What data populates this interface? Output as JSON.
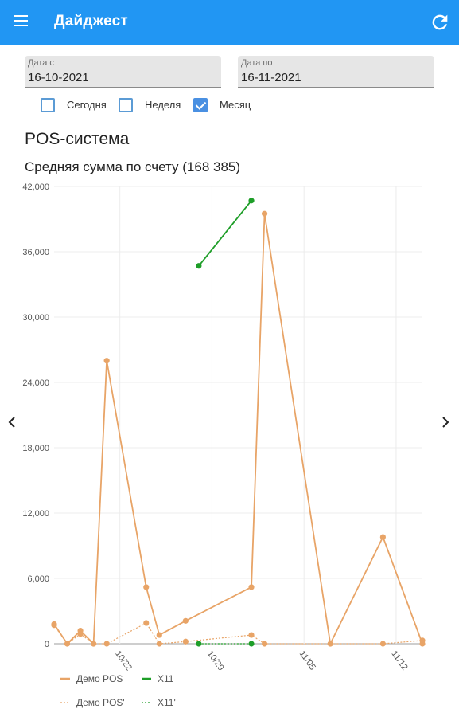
{
  "appbar": {
    "title": "Дайджест"
  },
  "filters": {
    "from": {
      "label": "Дата с",
      "value": "16-10-2021"
    },
    "to": {
      "label": "Дата по",
      "value": "16-11-2021"
    },
    "periods": [
      {
        "label": "Сегодня",
        "checked": false
      },
      {
        "label": "Неделя",
        "checked": false
      },
      {
        "label": "Месяц",
        "checked": true
      }
    ]
  },
  "section": {
    "title": "POS-система"
  },
  "colors": {
    "accent": "#2196f3",
    "orange": "#e8a467",
    "green": "#1e9e28"
  },
  "chart_data": {
    "type": "line",
    "title": "Средняя сумма по счету (168 385)",
    "xlabel": "",
    "ylabel": "",
    "ylim": [
      0,
      42000
    ],
    "y_ticks": [
      "0",
      "6,000",
      "12,000",
      "18,000",
      "24,000",
      "30,000",
      "36,000",
      "42,000"
    ],
    "x_ticks": [
      {
        "label": "10/22",
        "x": 22
      },
      {
        "label": "10/29",
        "x": 29
      },
      {
        "label": "11/05",
        "x": 36
      },
      {
        "label": "11/12",
        "x": 43
      }
    ],
    "grid": true,
    "legend": "bottom-left",
    "series": [
      {
        "name": "Демо POS",
        "color": "#e8a467",
        "dashed": false,
        "points": [
          [
            17,
            1800
          ],
          [
            18,
            0
          ],
          [
            19,
            1200
          ],
          [
            20,
            0
          ],
          [
            21,
            26000
          ],
          [
            24,
            5200
          ],
          [
            25,
            800
          ],
          [
            27,
            2100
          ],
          [
            32,
            5200
          ],
          [
            33,
            39500
          ],
          [
            38,
            0
          ],
          [
            42,
            9800
          ],
          [
            45,
            0
          ]
        ]
      },
      {
        "name": "X11",
        "color": "#1e9e28",
        "dashed": false,
        "points": [
          [
            28,
            34700
          ],
          [
            32,
            40700
          ]
        ]
      },
      {
        "name": "Демо POS'",
        "color": "#e8a467",
        "dashed": true,
        "points": [
          [
            17,
            1700
          ],
          [
            18,
            0
          ],
          [
            19,
            900
          ],
          [
            20,
            0
          ],
          [
            21,
            0
          ],
          [
            24,
            1900
          ],
          [
            25,
            0
          ],
          [
            27,
            200
          ],
          [
            32,
            800
          ],
          [
            33,
            0
          ],
          [
            38,
            0
          ],
          [
            42,
            0
          ],
          [
            45,
            300
          ]
        ]
      },
      {
        "name": "X11'",
        "color": "#1e9e28",
        "dashed": true,
        "points": [
          [
            28,
            0
          ],
          [
            32,
            0
          ]
        ]
      }
    ]
  }
}
